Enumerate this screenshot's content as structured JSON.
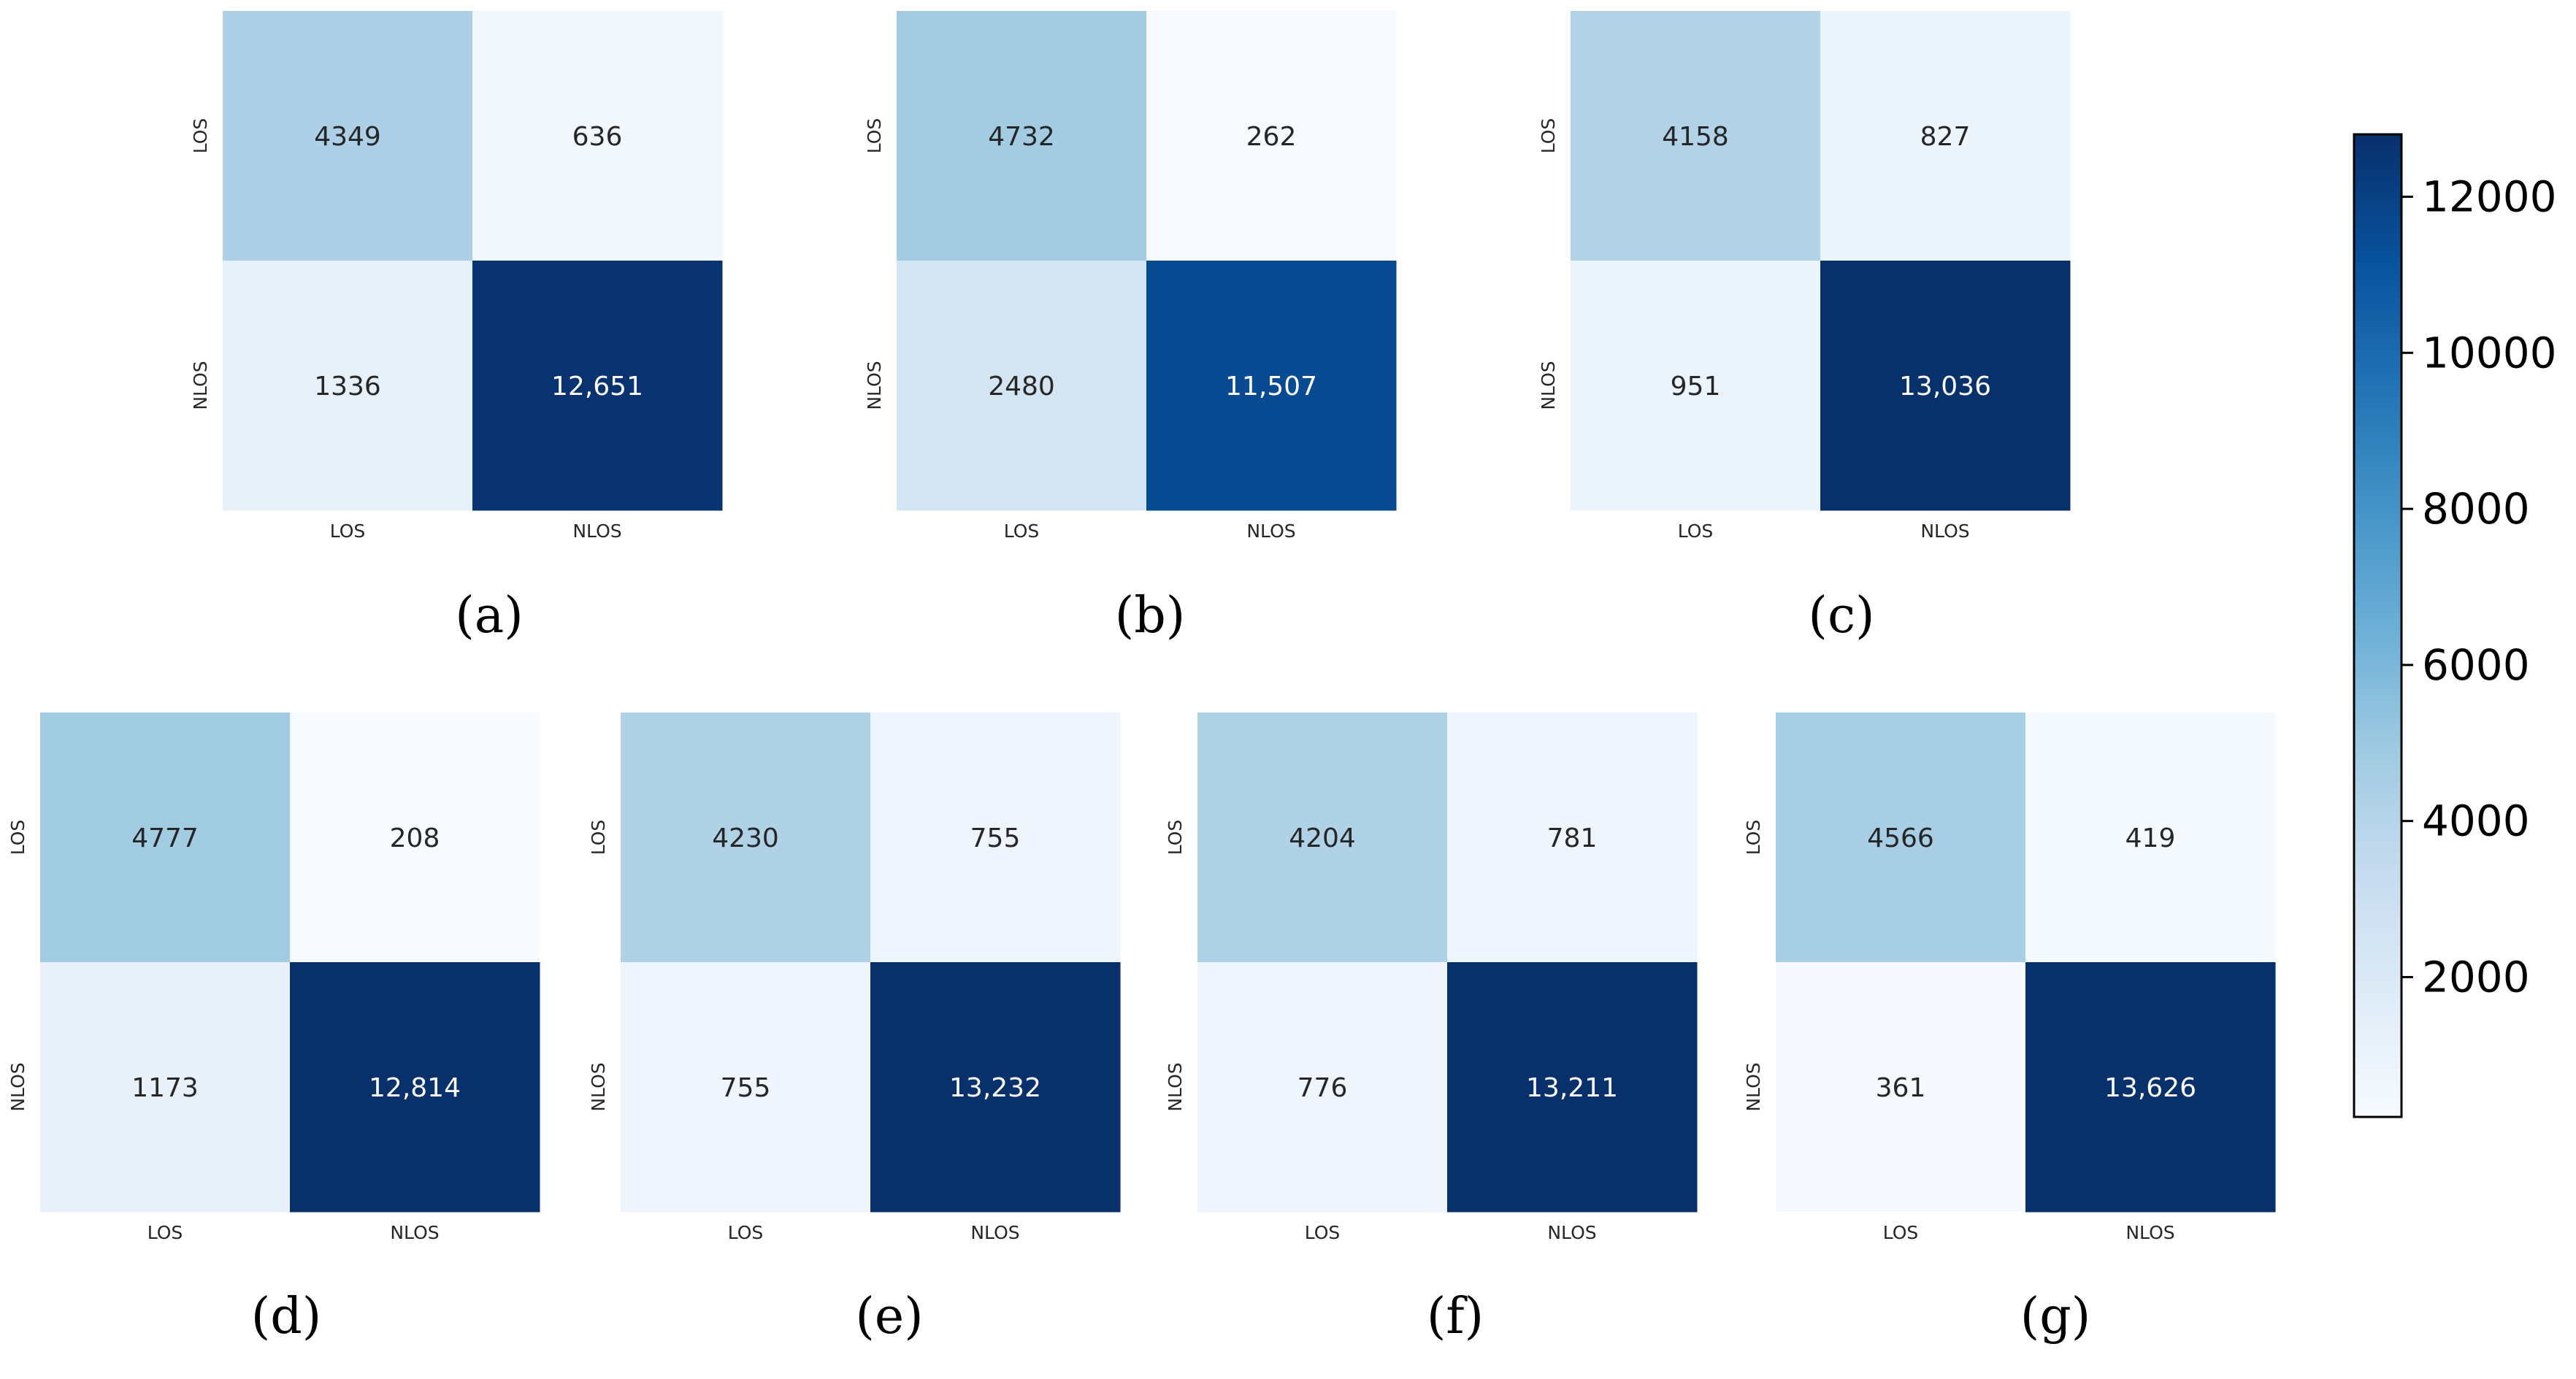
{
  "chart_data": [
    {
      "type": "heatmap",
      "panel": "(a)",
      "x_labels": [
        "LOS",
        "NLOS"
      ],
      "y_labels": [
        "LOS",
        "NLOS"
      ],
      "values": [
        [
          4349,
          636
        ],
        [
          1336,
          12651
        ]
      ],
      "cell_text": [
        [
          "4349",
          "636"
        ],
        [
          "1336",
          "12,651"
        ]
      ]
    },
    {
      "type": "heatmap",
      "panel": "(b)",
      "x_labels": [
        "LOS",
        "NLOS"
      ],
      "y_labels": [
        "LOS",
        "NLOS"
      ],
      "values": [
        [
          4732,
          262
        ],
        [
          2480,
          11507
        ]
      ],
      "cell_text": [
        [
          "4732",
          "262"
        ],
        [
          "2480",
          "11,507"
        ]
      ]
    },
    {
      "type": "heatmap",
      "panel": "(c)",
      "x_labels": [
        "LOS",
        "NLOS"
      ],
      "y_labels": [
        "LOS",
        "NLOS"
      ],
      "values": [
        [
          4158,
          827
        ],
        [
          951,
          13036
        ]
      ],
      "cell_text": [
        [
          "4158",
          "827"
        ],
        [
          "951",
          "13,036"
        ]
      ]
    },
    {
      "type": "heatmap",
      "panel": "(d)",
      "x_labels": [
        "LOS",
        "NLOS"
      ],
      "y_labels": [
        "LOS",
        "NLOS"
      ],
      "values": [
        [
          4777,
          208
        ],
        [
          1173,
          12814
        ]
      ],
      "cell_text": [
        [
          "4777",
          "208"
        ],
        [
          "1173",
          "12,814"
        ]
      ]
    },
    {
      "type": "heatmap",
      "panel": "(e)",
      "x_labels": [
        "LOS",
        "NLOS"
      ],
      "y_labels": [
        "LOS",
        "NLOS"
      ],
      "values": [
        [
          4230,
          755
        ],
        [
          755,
          13232
        ]
      ],
      "cell_text": [
        [
          "4230",
          "755"
        ],
        [
          "755",
          "13,232"
        ]
      ]
    },
    {
      "type": "heatmap",
      "panel": "(f)",
      "x_labels": [
        "LOS",
        "NLOS"
      ],
      "y_labels": [
        "LOS",
        "NLOS"
      ],
      "values": [
        [
          4204,
          781
        ],
        [
          776,
          13211
        ]
      ],
      "cell_text": [
        [
          "4204",
          "781"
        ],
        [
          "776",
          "13,211"
        ]
      ]
    },
    {
      "type": "heatmap",
      "panel": "(g)",
      "x_labels": [
        "LOS",
        "NLOS"
      ],
      "y_labels": [
        "LOS",
        "NLOS"
      ],
      "values": [
        [
          4566,
          419
        ],
        [
          361,
          13626
        ]
      ],
      "cell_text": [
        [
          "4566",
          "419"
        ],
        [
          "361",
          "13,626"
        ]
      ]
    }
  ],
  "colorbar": {
    "colormap": "Blues",
    "range": [
      208,
      12800
    ],
    "ticks": [
      2000,
      4000,
      6000,
      8000,
      10000,
      12000
    ],
    "tick_labels": [
      "2000",
      "4000",
      "6000",
      "8000",
      "10000",
      "12000"
    ],
    "colors": [
      "#f7fbff",
      "#deebf7",
      "#c6dbef",
      "#9ecae1",
      "#6baed6",
      "#4292c6",
      "#2171b5",
      "#08519c",
      "#08306b"
    ]
  }
}
